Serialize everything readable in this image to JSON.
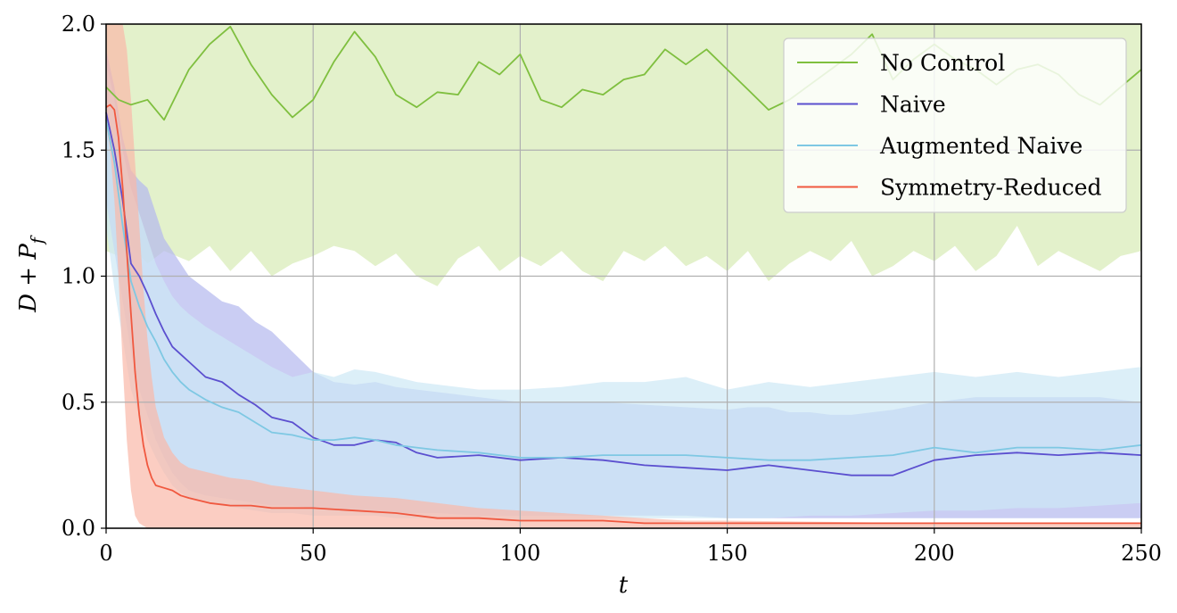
{
  "chart_data": {
    "type": "line",
    "xlabel": "t",
    "ylabel": "D + P_f",
    "xlim": [
      0,
      250
    ],
    "ylim": [
      0,
      2.0
    ],
    "xticks": [
      "0",
      "50",
      "100",
      "150",
      "200",
      "250"
    ],
    "yticks": [
      "0.0",
      "0.5",
      "1.0",
      "1.5",
      "2.0"
    ],
    "grid": true,
    "legend_position": "top-right",
    "series": [
      {
        "name": "No Control",
        "color": "#7fbf3f",
        "band_color": "#d7ebb5",
        "x": [
          0,
          3,
          6,
          10,
          14,
          20,
          25,
          30,
          35,
          40,
          45,
          50,
          55,
          60,
          65,
          70,
          75,
          80,
          85,
          90,
          95,
          100,
          105,
          110,
          115,
          120,
          125,
          130,
          135,
          140,
          145,
          150,
          155,
          160,
          165,
          170,
          175,
          180,
          185,
          190,
          195,
          200,
          205,
          210,
          215,
          220,
          225,
          230,
          235,
          240,
          245,
          250
        ],
        "values": [
          1.75,
          1.7,
          1.68,
          1.7,
          1.62,
          1.82,
          1.92,
          1.99,
          1.84,
          1.72,
          1.63,
          1.7,
          1.85,
          1.97,
          1.87,
          1.72,
          1.67,
          1.73,
          1.72,
          1.85,
          1.8,
          1.88,
          1.7,
          1.67,
          1.74,
          1.72,
          1.78,
          1.8,
          1.9,
          1.84,
          1.9,
          1.82,
          1.74,
          1.66,
          1.7,
          1.76,
          1.82,
          1.88,
          1.96,
          1.78,
          1.86,
          1.92,
          1.86,
          1.82,
          1.76,
          1.82,
          1.84,
          1.8,
          1.72,
          1.68,
          1.75,
          1.82
        ],
        "lower": [
          1.1,
          1.08,
          1.12,
          1.05,
          1.1,
          1.06,
          1.12,
          1.02,
          1.1,
          1.0,
          1.05,
          1.08,
          1.12,
          1.1,
          1.04,
          1.09,
          1.0,
          0.96,
          1.07,
          1.12,
          1.02,
          1.08,
          1.04,
          1.1,
          1.02,
          0.98,
          1.1,
          1.06,
          1.12,
          1.04,
          1.08,
          1.02,
          1.1,
          0.98,
          1.05,
          1.1,
          1.06,
          1.14,
          1.0,
          1.04,
          1.1,
          1.06,
          1.12,
          1.02,
          1.08,
          1.2,
          1.04,
          1.1,
          1.06,
          1.02,
          1.08,
          1.1
        ],
        "upper": [
          2.0,
          2.0,
          2.0,
          2.0,
          2.0,
          2.0,
          2.0,
          2.0,
          2.0,
          2.0,
          2.0,
          2.0,
          2.0,
          2.0,
          2.0,
          2.0,
          2.0,
          2.0,
          2.0,
          2.0,
          2.0,
          2.0,
          2.0,
          2.0,
          2.0,
          2.0,
          2.0,
          2.0,
          2.0,
          2.0,
          2.0,
          2.0,
          2.0,
          2.0,
          2.0,
          2.0,
          2.0,
          2.0,
          2.0,
          2.0,
          2.0,
          2.0,
          2.0,
          2.0,
          2.0,
          2.0,
          2.0,
          2.0,
          2.0,
          2.0,
          2.0,
          2.0
        ]
      },
      {
        "name": "Naive",
        "color": "#5b4fcf",
        "band_color": "#b4b8ee",
        "x": [
          0,
          2,
          4,
          6,
          8,
          10,
          12,
          14,
          16,
          18,
          20,
          24,
          28,
          32,
          36,
          40,
          45,
          50,
          55,
          60,
          65,
          70,
          75,
          80,
          90,
          100,
          110,
          120,
          130,
          140,
          150,
          155,
          160,
          165,
          170,
          175,
          180,
          190,
          200,
          210,
          220,
          230,
          240,
          250
        ],
        "values": [
          1.65,
          1.5,
          1.3,
          1.05,
          1.0,
          0.93,
          0.85,
          0.78,
          0.72,
          0.69,
          0.66,
          0.6,
          0.58,
          0.53,
          0.49,
          0.44,
          0.42,
          0.36,
          0.33,
          0.33,
          0.35,
          0.34,
          0.3,
          0.28,
          0.29,
          0.27,
          0.28,
          0.27,
          0.25,
          0.24,
          0.23,
          0.24,
          0.25,
          0.24,
          0.23,
          0.22,
          0.21,
          0.21,
          0.27,
          0.29,
          0.3,
          0.29,
          0.3,
          0.29
        ],
        "lower": [
          1.3,
          1.1,
          0.9,
          0.7,
          0.55,
          0.45,
          0.35,
          0.28,
          0.22,
          0.18,
          0.15,
          0.13,
          0.12,
          0.11,
          0.1,
          0.09,
          0.09,
          0.08,
          0.07,
          0.07,
          0.07,
          0.06,
          0.06,
          0.06,
          0.05,
          0.05,
          0.05,
          0.05,
          0.05,
          0.05,
          0.04,
          0.04,
          0.04,
          0.04,
          0.04,
          0.04,
          0.04,
          0.04,
          0.04,
          0.04,
          0.04,
          0.04,
          0.04,
          0.04
        ],
        "upper": [
          1.9,
          1.75,
          1.55,
          1.42,
          1.38,
          1.35,
          1.25,
          1.15,
          1.1,
          1.05,
          1.0,
          0.95,
          0.9,
          0.88,
          0.82,
          0.78,
          0.7,
          0.62,
          0.58,
          0.57,
          0.58,
          0.56,
          0.55,
          0.54,
          0.52,
          0.5,
          0.5,
          0.5,
          0.49,
          0.48,
          0.47,
          0.48,
          0.48,
          0.46,
          0.46,
          0.45,
          0.45,
          0.47,
          0.5,
          0.52,
          0.52,
          0.52,
          0.52,
          0.5
        ]
      },
      {
        "name": "Augmented Naive",
        "color": "#7ec8e3",
        "band_color": "#cde8f5",
        "x": [
          0,
          2,
          4,
          6,
          8,
          10,
          12,
          14,
          16,
          18,
          20,
          24,
          28,
          32,
          36,
          40,
          45,
          50,
          55,
          60,
          65,
          70,
          75,
          80,
          90,
          100,
          110,
          120,
          130,
          140,
          150,
          160,
          170,
          180,
          190,
          200,
          210,
          220,
          230,
          240,
          250
        ],
        "values": [
          1.62,
          1.45,
          1.2,
          0.98,
          0.88,
          0.8,
          0.74,
          0.67,
          0.62,
          0.58,
          0.55,
          0.51,
          0.48,
          0.46,
          0.42,
          0.38,
          0.37,
          0.35,
          0.35,
          0.36,
          0.35,
          0.33,
          0.32,
          0.31,
          0.3,
          0.28,
          0.28,
          0.29,
          0.29,
          0.29,
          0.28,
          0.27,
          0.27,
          0.28,
          0.29,
          0.32,
          0.3,
          0.32,
          0.32,
          0.31,
          0.33
        ],
        "lower": [
          1.2,
          0.95,
          0.75,
          0.55,
          0.45,
          0.35,
          0.28,
          0.22,
          0.17,
          0.14,
          0.12,
          0.1,
          0.09,
          0.08,
          0.07,
          0.06,
          0.06,
          0.05,
          0.05,
          0.05,
          0.05,
          0.04,
          0.04,
          0.04,
          0.04,
          0.03,
          0.03,
          0.04,
          0.04,
          0.04,
          0.04,
          0.04,
          0.05,
          0.05,
          0.06,
          0.07,
          0.07,
          0.08,
          0.08,
          0.09,
          0.1
        ],
        "upper": [
          1.85,
          1.7,
          1.5,
          1.35,
          1.25,
          1.15,
          1.05,
          0.98,
          0.92,
          0.88,
          0.85,
          0.8,
          0.76,
          0.72,
          0.68,
          0.64,
          0.6,
          0.62,
          0.6,
          0.63,
          0.62,
          0.6,
          0.58,
          0.57,
          0.55,
          0.55,
          0.56,
          0.58,
          0.58,
          0.6,
          0.55,
          0.58,
          0.56,
          0.58,
          0.6,
          0.62,
          0.6,
          0.62,
          0.6,
          0.62,
          0.64
        ]
      },
      {
        "name": "Symmetry-Reduced",
        "color": "#f0583f",
        "band_color": "#f9b8a8",
        "x": [
          0,
          1,
          2,
          3,
          4,
          5,
          6,
          7,
          8,
          9,
          10,
          11,
          12,
          14,
          16,
          18,
          20,
          25,
          30,
          35,
          40,
          50,
          60,
          70,
          80,
          90,
          100,
          110,
          120,
          130,
          140,
          150,
          200,
          250
        ],
        "values": [
          1.67,
          1.68,
          1.66,
          1.55,
          1.35,
          1.1,
          0.85,
          0.62,
          0.45,
          0.33,
          0.25,
          0.2,
          0.17,
          0.16,
          0.15,
          0.13,
          0.12,
          0.1,
          0.09,
          0.09,
          0.08,
          0.08,
          0.07,
          0.06,
          0.04,
          0.04,
          0.03,
          0.03,
          0.03,
          0.02,
          0.02,
          0.02,
          0.02,
          0.02
        ],
        "lower": [
          1.6,
          1.5,
          1.3,
          1.0,
          0.65,
          0.35,
          0.15,
          0.05,
          0.02,
          0.01,
          0.0,
          0.0,
          0.0,
          0.0,
          0.0,
          0.0,
          0.0,
          0.0,
          0.0,
          0.0,
          0.0,
          0.0,
          0.0,
          0.0,
          0.0,
          0.0,
          0.0,
          0.0,
          0.0,
          0.0,
          0.0,
          0.0,
          0.0,
          0.0
        ],
        "upper": [
          2.0,
          2.0,
          2.0,
          2.0,
          2.0,
          1.9,
          1.7,
          1.45,
          1.2,
          0.95,
          0.75,
          0.6,
          0.48,
          0.36,
          0.3,
          0.26,
          0.24,
          0.22,
          0.2,
          0.19,
          0.17,
          0.15,
          0.13,
          0.12,
          0.1,
          0.08,
          0.07,
          0.06,
          0.05,
          0.04,
          0.03,
          0.03,
          0.02,
          0.02
        ]
      }
    ]
  }
}
